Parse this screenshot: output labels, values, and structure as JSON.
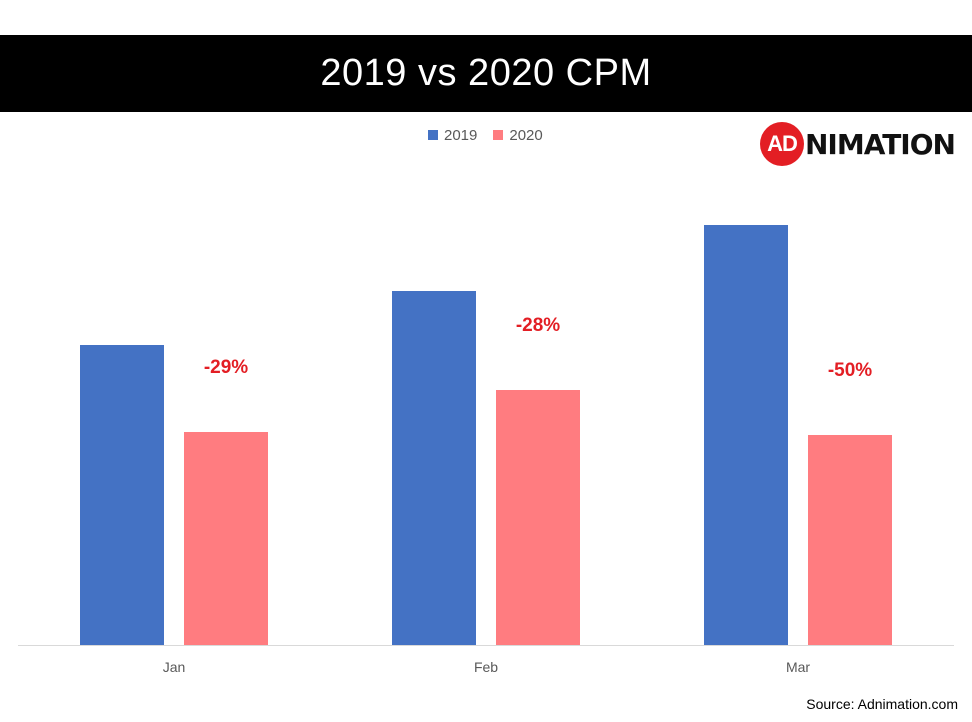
{
  "chart_data": {
    "type": "bar",
    "title": "2019 vs 2020 CPM",
    "categories": [
      "Jan",
      "Feb",
      "Mar"
    ],
    "series": [
      {
        "name": "2019",
        "color": "#4472c4",
        "values": [
          1.0,
          1.18,
          1.4
        ]
      },
      {
        "name": "2020",
        "color": "#ff7c80",
        "values": [
          0.71,
          0.85,
          0.7
        ]
      }
    ],
    "annotations": [
      "-29%",
      "-28%",
      "-50%"
    ],
    "annotation_color": "#e31e24",
    "ylim": [
      0,
      1.5
    ],
    "grid": false,
    "legend_position": "top"
  },
  "logo": {
    "circle_text": "AD",
    "text": "NIMATION"
  },
  "source": "Source: Adnimation.com"
}
